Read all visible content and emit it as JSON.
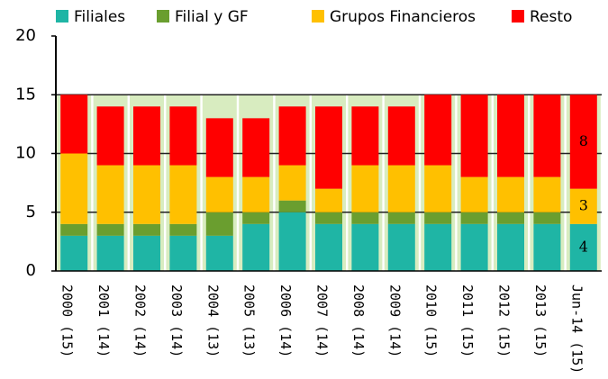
{
  "chart_data": {
    "type": "stacked_bar",
    "categories": [
      "2000 (15)",
      "2001 (14)",
      "2002 (14)",
      "2003 (14)",
      "2004 (13)",
      "2005 (13)",
      "2006 (14)",
      "2007 (14)",
      "2008 (14)",
      "2009 (14)",
      "2010 (15)",
      "2011 (15)",
      "2012 (15)",
      "2013 (15)",
      "Jun-14 (15)"
    ],
    "series": [
      {
        "name": "Filiales",
        "color": "#1fb5a5",
        "values": [
          3,
          3,
          3,
          3,
          3,
          4,
          5,
          4,
          4,
          4,
          4,
          4,
          4,
          4,
          4
        ]
      },
      {
        "name": "Filial y GF",
        "color": "#6a9e2f",
        "values": [
          1,
          1,
          1,
          1,
          2,
          1,
          1,
          1,
          1,
          1,
          1,
          1,
          1,
          1,
          0
        ]
      },
      {
        "name": "Grupos Financieros",
        "color": "#ffc000",
        "values": [
          6,
          5,
          5,
          5,
          3,
          3,
          3,
          2,
          4,
          4,
          4,
          3,
          3,
          3,
          3
        ]
      },
      {
        "name": "Resto",
        "color": "#ff0000",
        "values": [
          5,
          5,
          5,
          5,
          5,
          5,
          5,
          7,
          5,
          5,
          6,
          7,
          7,
          7,
          8
        ]
      }
    ],
    "ylim": [
      0,
      20
    ],
    "yticks": [
      0,
      5,
      10,
      15,
      20
    ],
    "grid": true
  }
}
